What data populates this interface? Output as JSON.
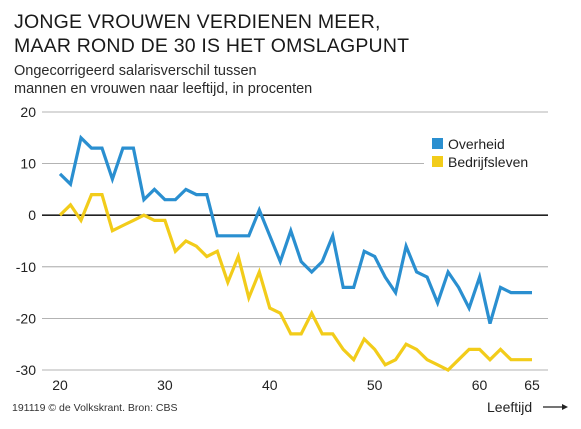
{
  "title_line1": "JONGE VROUWEN VERDIENEN MEER,",
  "title_line2": "MAAR ROND DE 30 IS HET OMSLAGPUNT",
  "subtitle_line1": "Ongecorrigeerd salarisverschil tussen",
  "subtitle_line2": "mannen en vrouwen naar leeftijd, in procenten",
  "credit": "191119 © de Volkskrant. Bron: CBS",
  "chart_data": {
    "type": "line",
    "xlabel": "Leeftijd",
    "ylabel": "",
    "xlim": [
      20,
      65
    ],
    "ylim": [
      -30,
      20
    ],
    "x_ticks": [
      20,
      30,
      40,
      50,
      60,
      65
    ],
    "y_ticks": [
      20,
      10,
      0,
      -10,
      -20,
      -30
    ],
    "grid": true,
    "zero_line_bold": true,
    "legend_position": "top-right",
    "x": [
      20,
      21,
      22,
      23,
      24,
      25,
      26,
      27,
      28,
      29,
      30,
      31,
      32,
      33,
      34,
      35,
      36,
      37,
      38,
      39,
      40,
      41,
      42,
      43,
      44,
      45,
      46,
      47,
      48,
      49,
      50,
      51,
      52,
      53,
      54,
      55,
      56,
      57,
      58,
      59,
      60,
      61,
      62,
      63,
      64,
      65
    ],
    "series": [
      {
        "name": "Overheid",
        "color": "#2a8fd0",
        "values": [
          8,
          6,
          15,
          13,
          13,
          7,
          13,
          13,
          3,
          5,
          3,
          3,
          5,
          4,
          4,
          -4,
          -4,
          -4,
          -4,
          1,
          -4,
          -9,
          -3,
          -9,
          -11,
          -9,
          -4,
          -14,
          -14,
          -7,
          -8,
          -12,
          -15,
          -6,
          -11,
          -12,
          -17,
          -11,
          -14,
          -18,
          -12,
          -21,
          -14,
          -15,
          -15,
          -15
        ]
      },
      {
        "name": "Bedrijfsleven",
        "color": "#f2cc1a",
        "values": [
          0,
          2,
          -1,
          4,
          4,
          -3,
          -2,
          -1,
          0,
          -1,
          -1,
          -7,
          -5,
          -6,
          -8,
          -7,
          -13,
          -8,
          -16,
          -11,
          -18,
          -19,
          -23,
          -23,
          -19,
          -23,
          -23,
          -26,
          -28,
          -24,
          -26,
          -29,
          -28,
          -25,
          -26,
          -28,
          -29,
          -30,
          -28,
          -26,
          -26,
          -28,
          -26,
          -28,
          -28,
          -28
        ]
      }
    ]
  }
}
